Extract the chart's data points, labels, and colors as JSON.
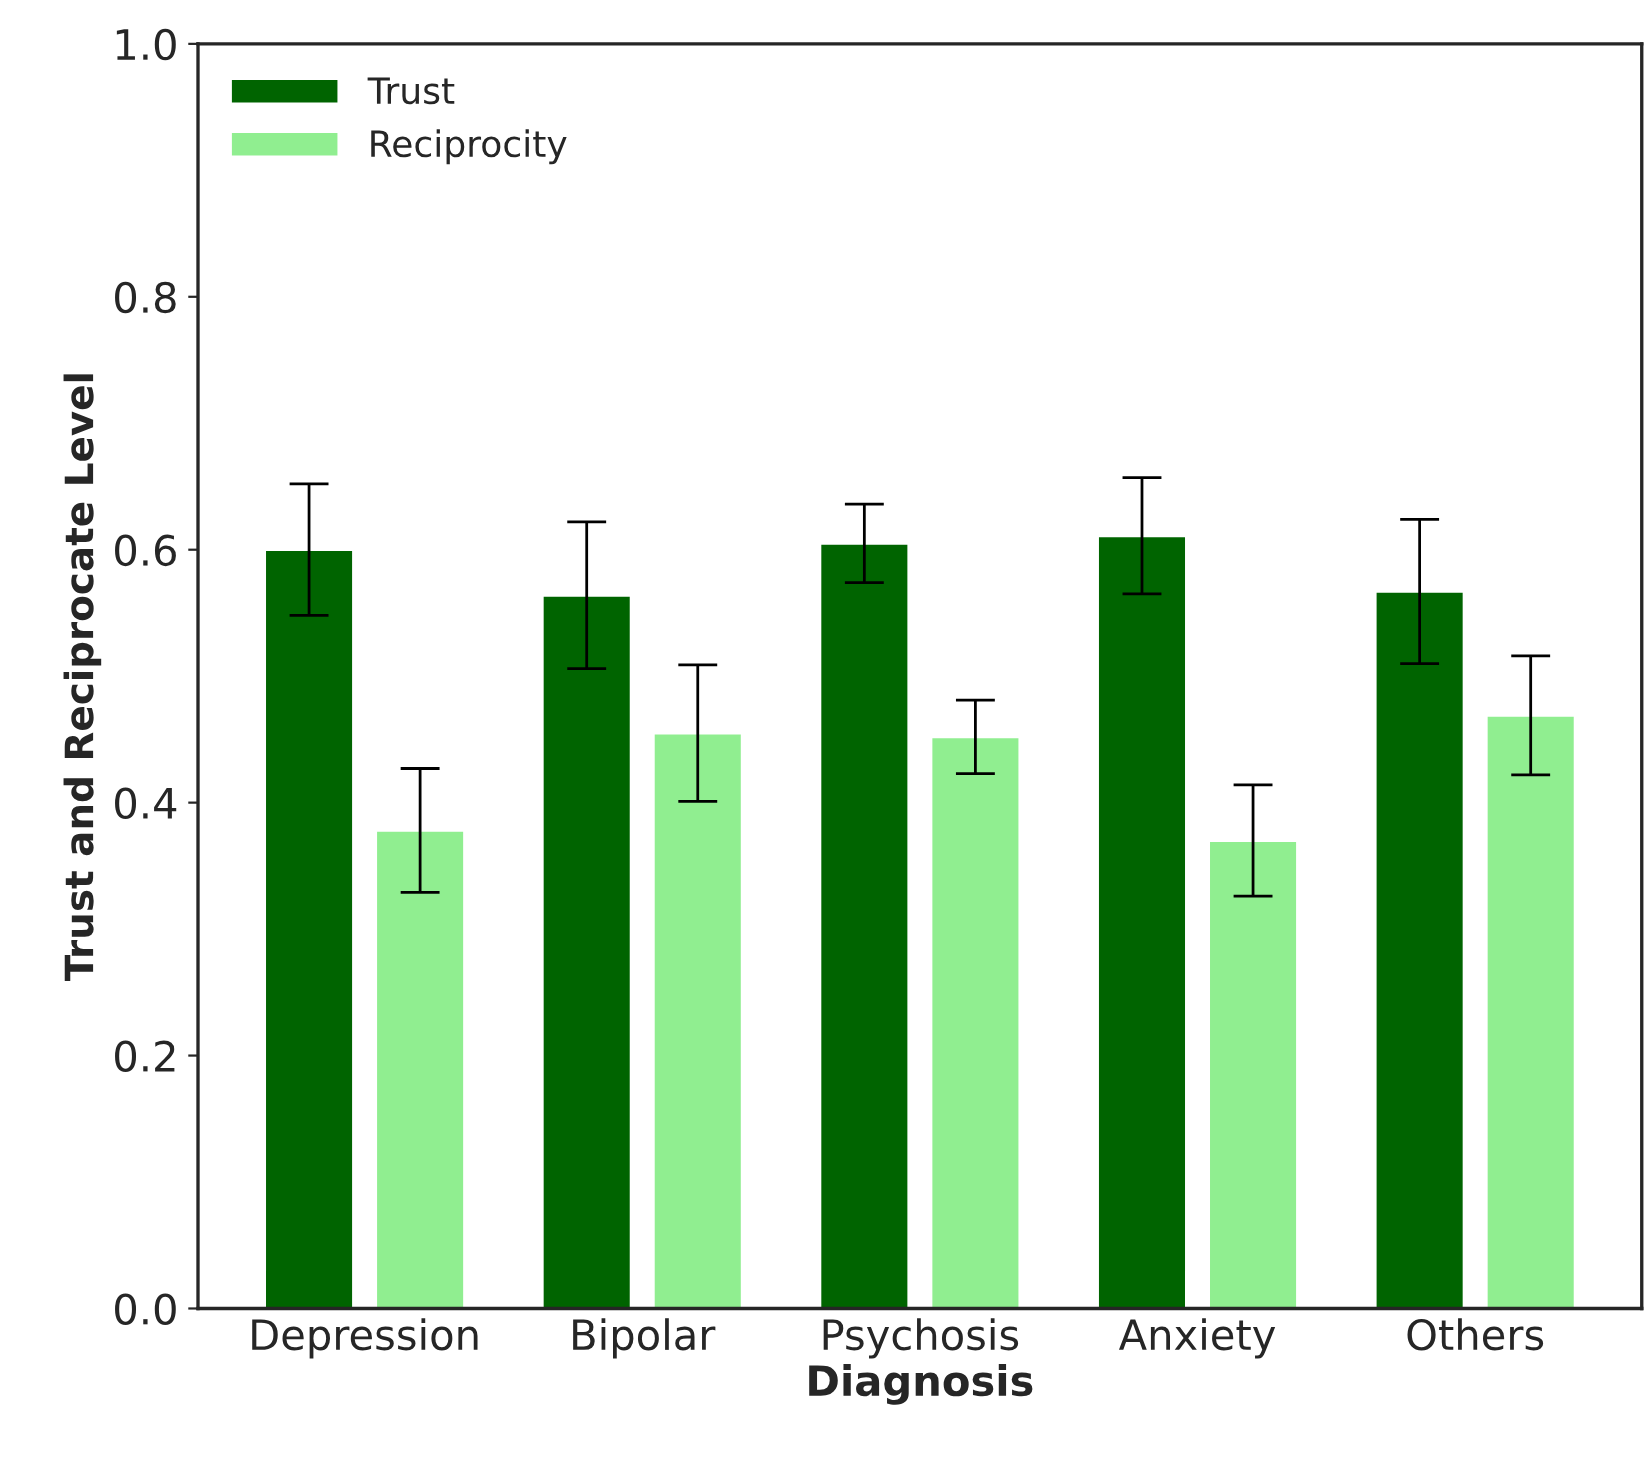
{
  "chart_data": {
    "type": "bar",
    "xlabel": "Diagnosis",
    "ylabel": "Trust and Reciprocate Level",
    "categories": [
      "Depression",
      "Bipolar",
      "Psychosis",
      "Anxiety",
      "Others"
    ],
    "series": [
      {
        "name": "Trust",
        "color": "#006400",
        "values": [
          0.6,
          0.564,
          0.605,
          0.611,
          0.567
        ],
        "errors": [
          0.052,
          0.058,
          0.031,
          0.046,
          0.057
        ]
      },
      {
        "name": "Reciprocity",
        "color": "#90ee90",
        "values": [
          0.378,
          0.455,
          0.452,
          0.37,
          0.469
        ],
        "errors": [
          0.049,
          0.054,
          0.029,
          0.044,
          0.047
        ]
      }
    ],
    "ylim": [
      0,
      1.0
    ],
    "yticks": [
      {
        "value": 0,
        "label": "0.0"
      },
      {
        "value": 0.2,
        "label": "0.2"
      },
      {
        "value": 0.4,
        "label": "0.4"
      },
      {
        "value": 0.6,
        "label": "0.6"
      },
      {
        "value": 0.8,
        "label": "0.8"
      },
      {
        "value": 1.0,
        "label": "1.0"
      }
    ],
    "grid": false,
    "legend": "top left"
  }
}
